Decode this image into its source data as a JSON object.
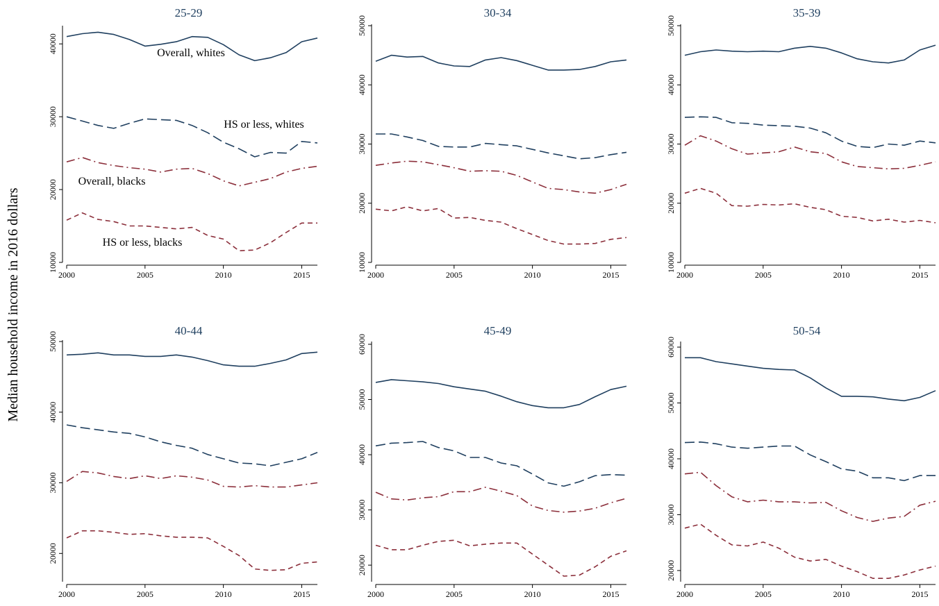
{
  "ylabel": "Median household income in 2016 dollars",
  "colors": {
    "whites": "#1f3f5f",
    "blacks": "#8b2e3a",
    "axis": "#000000",
    "title": "#1f3f5f"
  },
  "series_styles": {
    "Overall, whites": {
      "color": "#1f3f5f",
      "dash": "solid"
    },
    "HS or less, whites": {
      "color": "#1f3f5f",
      "dash": "longdash"
    },
    "Overall, blacks": {
      "color": "#8b2e3a",
      "dash": "dashdot"
    },
    "HS or less, blacks": {
      "color": "#8b2e3a",
      "dash": "shortdash"
    }
  },
  "chart_data": [
    {
      "type": "line",
      "title": "25-29",
      "x": [
        2000,
        2001,
        2002,
        2003,
        2004,
        2005,
        2006,
        2007,
        2008,
        2009,
        2010,
        2011,
        2012,
        2013,
        2014,
        2015,
        2016
      ],
      "xlim": [
        2000,
        2016
      ],
      "xticks": [
        2000,
        2005,
        2010,
        2015
      ],
      "ylim": [
        10000,
        42500
      ],
      "yticks": [
        10000,
        20000,
        30000,
        40000
      ],
      "annotations": [
        "Overall, whites",
        "HS or less, whites",
        "Overall, blacks",
        "HS or less, blacks"
      ],
      "series": [
        {
          "name": "Overall, whites",
          "values": [
            41000,
            41400,
            41600,
            41300,
            40600,
            39700,
            39950,
            40300,
            41000,
            40900,
            39900,
            38500,
            37700,
            38100,
            38800,
            40300,
            40800
          ]
        },
        {
          "name": "HS or less, whites",
          "values": [
            30000,
            29400,
            28800,
            28400,
            29100,
            29700,
            29600,
            29500,
            28800,
            27800,
            26500,
            25600,
            24500,
            25100,
            25000,
            26600,
            26400
          ]
        },
        {
          "name": "Overall, blacks",
          "values": [
            23800,
            24400,
            23700,
            23300,
            23000,
            22800,
            22400,
            22800,
            22900,
            22200,
            21200,
            20500,
            21000,
            21500,
            22400,
            22900,
            23200
          ]
        },
        {
          "name": "HS or less, blacks",
          "values": [
            15800,
            16800,
            15900,
            15600,
            15000,
            15000,
            14800,
            14600,
            14800,
            13700,
            13200,
            11600,
            11700,
            12700,
            14100,
            15400,
            15400
          ]
        }
      ]
    },
    {
      "type": "line",
      "title": "30-34",
      "x": [
        2000,
        2001,
        2002,
        2003,
        2004,
        2005,
        2006,
        2007,
        2008,
        2009,
        2010,
        2011,
        2012,
        2013,
        2014,
        2015,
        2016
      ],
      "xlim": [
        2000,
        2016
      ],
      "xticks": [
        2000,
        2005,
        2010,
        2015
      ],
      "ylim": [
        10000,
        50000
      ],
      "yticks": [
        10000,
        20000,
        30000,
        40000,
        50000
      ],
      "series": [
        {
          "name": "Overall, whites",
          "values": [
            44000,
            45000,
            44700,
            44800,
            43700,
            43200,
            43100,
            44200,
            44600,
            44100,
            43300,
            42500,
            42500,
            42600,
            43100,
            43900,
            44200
          ]
        },
        {
          "name": "HS or less, whites",
          "values": [
            31700,
            31700,
            31200,
            30600,
            29600,
            29500,
            29500,
            30100,
            29900,
            29700,
            29100,
            28500,
            28000,
            27500,
            27700,
            28200,
            28600
          ]
        },
        {
          "name": "Overall, blacks",
          "values": [
            26400,
            26800,
            27100,
            27000,
            26500,
            26000,
            25400,
            25500,
            25400,
            24700,
            23600,
            22500,
            22300,
            21900,
            21700,
            22300,
            23200
          ]
        },
        {
          "name": "HS or less, blacks",
          "values": [
            19000,
            18700,
            19400,
            18700,
            19100,
            17500,
            17600,
            17100,
            16800,
            15700,
            14700,
            13700,
            13100,
            13100,
            13200,
            13900,
            14200
          ]
        }
      ]
    },
    {
      "type": "line",
      "title": "35-39",
      "x": [
        2000,
        2001,
        2002,
        2003,
        2004,
        2005,
        2006,
        2007,
        2008,
        2009,
        2010,
        2011,
        2012,
        2013,
        2014,
        2015,
        2016
      ],
      "xlim": [
        2000,
        2016
      ],
      "xticks": [
        2000,
        2005,
        2010,
        2015
      ],
      "ylim": [
        10000,
        50000
      ],
      "yticks": [
        10000,
        20000,
        30000,
        40000,
        50000
      ],
      "series": [
        {
          "name": "Overall, whites",
          "values": [
            45000,
            45600,
            45900,
            45700,
            45600,
            45700,
            45600,
            46200,
            46500,
            46200,
            45400,
            44400,
            43900,
            43700,
            44200,
            45900,
            46700
          ]
        },
        {
          "name": "HS or less, whites",
          "values": [
            34500,
            34600,
            34500,
            33600,
            33500,
            33200,
            33100,
            33000,
            32700,
            31900,
            30500,
            29600,
            29400,
            30000,
            29800,
            30500,
            30200
          ]
        },
        {
          "name": "Overall, blacks",
          "values": [
            29800,
            31400,
            30500,
            29200,
            28300,
            28500,
            28700,
            29500,
            28700,
            28400,
            27000,
            26200,
            26000,
            25800,
            25900,
            26400,
            27000
          ]
        },
        {
          "name": "HS or less, blacks",
          "values": [
            21700,
            22500,
            21700,
            19600,
            19500,
            19800,
            19700,
            19900,
            19300,
            18900,
            17800,
            17600,
            17000,
            17300,
            16800,
            17100,
            16700
          ]
        }
      ]
    },
    {
      "type": "line",
      "title": "40-44",
      "x": [
        2000,
        2001,
        2002,
        2003,
        2004,
        2005,
        2006,
        2007,
        2008,
        2009,
        2010,
        2011,
        2012,
        2013,
        2014,
        2015,
        2016
      ],
      "xlim": [
        2000,
        2016
      ],
      "xticks": [
        2000,
        2005,
        2010,
        2015
      ],
      "ylim": [
        16000,
        50000
      ],
      "yticks": [
        20000,
        30000,
        40000,
        50000
      ],
      "series": [
        {
          "name": "Overall, whites",
          "values": [
            48100,
            48200,
            48400,
            48100,
            48100,
            47900,
            47900,
            48100,
            47800,
            47300,
            46700,
            46500,
            46500,
            46900,
            47400,
            48300,
            48500
          ]
        },
        {
          "name": "HS or less, whites",
          "values": [
            38200,
            37800,
            37500,
            37200,
            37000,
            36500,
            35800,
            35300,
            34900,
            34000,
            33400,
            32800,
            32700,
            32400,
            32900,
            33400,
            34300
          ]
        },
        {
          "name": "Overall, blacks",
          "values": [
            30200,
            31600,
            31400,
            30900,
            30600,
            31000,
            30600,
            31000,
            30800,
            30400,
            29500,
            29400,
            29600,
            29400,
            29400,
            29700,
            30000
          ]
        },
        {
          "name": "HS or less, blacks",
          "values": [
            22200,
            23200,
            23200,
            23000,
            22700,
            22800,
            22500,
            22300,
            22300,
            22200,
            21000,
            19700,
            17800,
            17600,
            17700,
            18600,
            18800
          ]
        }
      ]
    },
    {
      "type": "line",
      "title": "45-49",
      "x": [
        2000,
        2001,
        2002,
        2003,
        2004,
        2005,
        2006,
        2007,
        2008,
        2009,
        2010,
        2011,
        2012,
        2013,
        2014,
        2015,
        2016
      ],
      "xlim": [
        2000,
        2016
      ],
      "xticks": [
        2000,
        2005,
        2010,
        2015
      ],
      "ylim": [
        17000,
        60500
      ],
      "yticks": [
        20000,
        30000,
        40000,
        50000,
        60000
      ],
      "series": [
        {
          "name": "Overall, whites",
          "values": [
            53100,
            53600,
            53400,
            53200,
            52900,
            52300,
            51900,
            51500,
            50600,
            49600,
            48900,
            48500,
            48500,
            49100,
            50500,
            51800,
            52400
          ]
        },
        {
          "name": "HS or less, whites",
          "values": [
            41600,
            42100,
            42200,
            42400,
            41300,
            40700,
            39500,
            39500,
            38500,
            38000,
            36500,
            34900,
            34300,
            35100,
            36200,
            36400,
            36300
          ]
        },
        {
          "name": "Overall, blacks",
          "values": [
            33200,
            32000,
            31800,
            32200,
            32400,
            33300,
            33300,
            34100,
            33400,
            32600,
            30700,
            29900,
            29600,
            29800,
            30300,
            31300,
            32100
          ]
        },
        {
          "name": "HS or less, blacks",
          "values": [
            23600,
            22800,
            22800,
            23600,
            24300,
            24500,
            23500,
            23800,
            24000,
            24000,
            22000,
            20000,
            18000,
            18200,
            19700,
            21600,
            22600
          ]
        }
      ]
    },
    {
      "type": "line",
      "title": "50-54",
      "x": [
        2000,
        2001,
        2002,
        2003,
        2004,
        2005,
        2006,
        2007,
        2008,
        2009,
        2010,
        2011,
        2012,
        2013,
        2014,
        2015,
        2016
      ],
      "xlim": [
        2000,
        2016
      ],
      "xticks": [
        2000,
        2005,
        2010,
        2015
      ],
      "ylim": [
        18000,
        61000
      ],
      "yticks": [
        20000,
        30000,
        40000,
        50000,
        60000
      ],
      "series": [
        {
          "name": "Overall, whites",
          "values": [
            58100,
            58100,
            57400,
            57000,
            56600,
            56200,
            56000,
            55900,
            54500,
            52700,
            51200,
            51200,
            51100,
            50700,
            50400,
            51000,
            52200
          ]
        },
        {
          "name": "HS or less, whites",
          "values": [
            42900,
            43000,
            42700,
            42100,
            41900,
            42100,
            42300,
            42300,
            40700,
            39500,
            38200,
            37800,
            36600,
            36600,
            36100,
            37000,
            37000
          ]
        },
        {
          "name": "Overall, blacks",
          "values": [
            37300,
            37600,
            35200,
            33200,
            32300,
            32600,
            32300,
            32300,
            32100,
            32200,
            30700,
            29500,
            28800,
            29400,
            29700,
            31700,
            32400
          ]
        },
        {
          "name": "HS or less, blacks",
          "values": [
            27600,
            28300,
            26300,
            24600,
            24400,
            25100,
            24000,
            22400,
            21700,
            22000,
            20800,
            19800,
            18600,
            18600,
            19200,
            20100,
            20800
          ]
        }
      ]
    }
  ]
}
